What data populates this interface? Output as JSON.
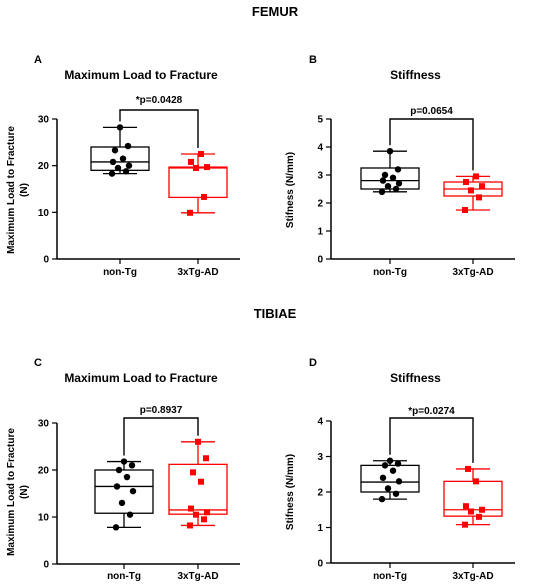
{
  "sections": {
    "femur": "FEMUR",
    "tibiae": "TIBIAE"
  },
  "chart_data": [
    {
      "id": "A",
      "type": "box",
      "letter": "A",
      "section": "FEMUR",
      "title": "Maximum Load to Fracture",
      "ylabel_lines": [
        "Maximum Load to Fracture",
        "(N)"
      ],
      "categories": [
        "non-Tg",
        "3xTg-AD"
      ],
      "ylim": [
        0,
        30
      ],
      "yticks": [
        0,
        10,
        20,
        30
      ],
      "ytick_labels": [
        "0",
        "10",
        "20",
        "30"
      ],
      "annotation": "*p=0.0428",
      "series": [
        {
          "color": "#000000",
          "marker": "circle",
          "box": {
            "min": 18.3,
            "q1": 19.0,
            "median": 20.8,
            "q3": 24.0,
            "max": 28.2
          },
          "points": [
            18.3,
            18.8,
            19.5,
            20.0,
            20.8,
            21.5,
            23.3,
            24.2,
            28.2
          ]
        },
        {
          "color": "#ff0000",
          "marker": "square",
          "box": {
            "min": 9.9,
            "q1": 13.2,
            "median": 19.5,
            "q3": 19.7,
            "max": 22.5
          },
          "points": [
            9.9,
            13.3,
            19.5,
            19.7,
            20.8,
            22.5
          ]
        }
      ]
    },
    {
      "id": "B",
      "type": "box",
      "letter": "B",
      "section": "FEMUR",
      "title": "Stiffness",
      "ylabel_lines": [
        "Stifness (N/mm)"
      ],
      "categories": [
        "non-Tg",
        "3xTg-AD"
      ],
      "ylim": [
        0,
        5
      ],
      "yticks": [
        0,
        1,
        2,
        3,
        4,
        5
      ],
      "ytick_labels": [
        "0",
        "1",
        "2",
        "3",
        "4",
        "5"
      ],
      "annotation": "p=0.0654",
      "series": [
        {
          "color": "#000000",
          "marker": "circle",
          "box": {
            "min": 2.4,
            "q1": 2.5,
            "median": 2.8,
            "q3": 3.25,
            "max": 3.85
          },
          "points": [
            2.4,
            2.5,
            2.6,
            2.7,
            2.8,
            2.9,
            3.0,
            3.2,
            3.85
          ]
        },
        {
          "color": "#ff0000",
          "marker": "square",
          "box": {
            "min": 1.75,
            "q1": 2.25,
            "median": 2.5,
            "q3": 2.75,
            "max": 2.95
          },
          "points": [
            1.75,
            2.2,
            2.45,
            2.6,
            2.75,
            2.95
          ]
        }
      ]
    },
    {
      "id": "C",
      "type": "box",
      "letter": "C",
      "section": "TIBIAE",
      "title": "Maximum Load to Fracture",
      "ylabel_lines": [
        "Maximum Load to Fracture",
        "(N)"
      ],
      "categories": [
        "non-Tg",
        "3xTg-AD"
      ],
      "ylim": [
        0,
        30
      ],
      "yticks": [
        0,
        10,
        20,
        30
      ],
      "ytick_labels": [
        "0",
        "10",
        "20",
        "30"
      ],
      "annotation": "p=0.8937",
      "series": [
        {
          "color": "#000000",
          "marker": "circle",
          "box": {
            "min": 7.8,
            "q1": 10.8,
            "median": 16.5,
            "q3": 20.0,
            "max": 21.8
          },
          "points": [
            7.8,
            10.5,
            13.0,
            15.5,
            16.5,
            18.5,
            20.0,
            21.0,
            21.8
          ]
        },
        {
          "color": "#ff0000",
          "marker": "square",
          "box": {
            "min": 8.2,
            "q1": 10.6,
            "median": 11.5,
            "q3": 21.2,
            "max": 26.0
          },
          "points": [
            8.2,
            9.5,
            10.5,
            11.0,
            11.8,
            17.5,
            19.5,
            22.5,
            26.0
          ]
        }
      ]
    },
    {
      "id": "D",
      "type": "box",
      "letter": "D",
      "section": "TIBIAE",
      "title": "Stiffness",
      "ylabel_lines": [
        "Stifness (N/mm)"
      ],
      "categories": [
        "non-Tg",
        "3xTg-AD"
      ],
      "ylim": [
        0,
        4
      ],
      "yticks": [
        0,
        1,
        2,
        3,
        4
      ],
      "ytick_labels": [
        "0",
        "1",
        "2",
        "3",
        "4"
      ],
      "annotation": "*p=0.0274",
      "series": [
        {
          "color": "#000000",
          "marker": "circle",
          "box": {
            "min": 1.8,
            "q1": 2.0,
            "median": 2.28,
            "q3": 2.75,
            "max": 2.88
          },
          "points": [
            1.8,
            1.95,
            2.1,
            2.3,
            2.4,
            2.6,
            2.75,
            2.8,
            2.88
          ]
        },
        {
          "color": "#ff0000",
          "marker": "square",
          "box": {
            "min": 1.08,
            "q1": 1.32,
            "median": 1.5,
            "q3": 2.3,
            "max": 2.65
          },
          "points": [
            1.08,
            1.3,
            1.45,
            1.5,
            1.6,
            2.3,
            2.65
          ]
        }
      ]
    }
  ]
}
